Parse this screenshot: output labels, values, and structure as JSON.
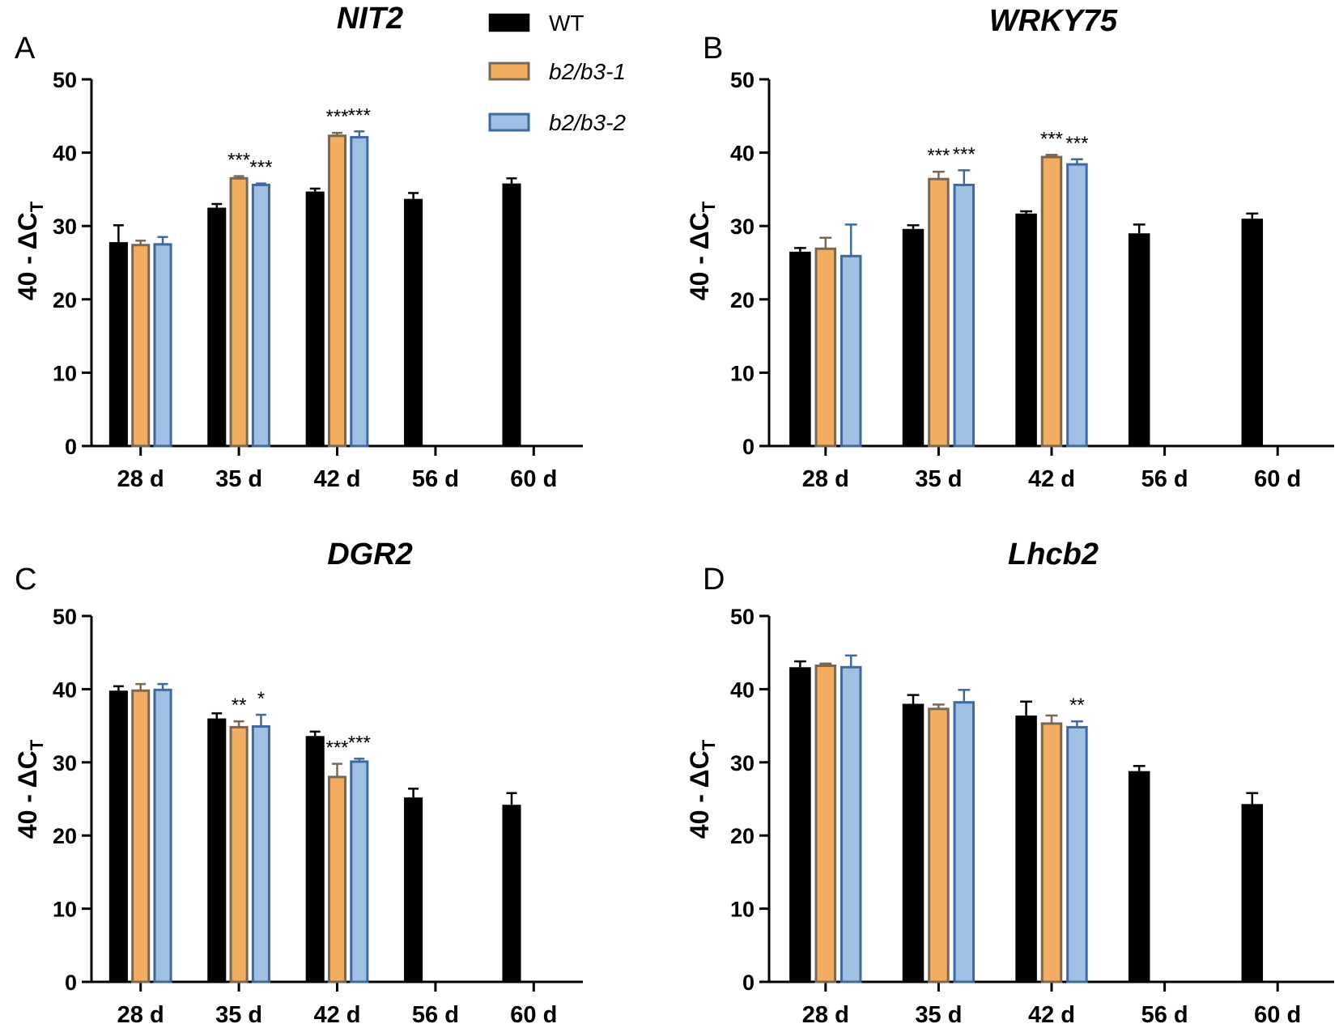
{
  "colors": {
    "WT": {
      "fill": "#000000",
      "edge": "#000000",
      "err": "#000000"
    },
    "b2b3_1": {
      "fill": "#f3ad62",
      "edge": "#7a6750",
      "err": "#7a6750"
    },
    "b2b3_2": {
      "fill": "#9fbfe3",
      "edge": "#3f6aa1",
      "err": "#3f6aa1"
    }
  },
  "legend": {
    "wt": "WT",
    "b2b3_1": "b2/b3-1",
    "b2b3_2": "b2/b3-2"
  },
  "chart_data": [
    {
      "panel": "A",
      "type": "bar",
      "title": "NIT2",
      "ylabel": "40 - ΔC",
      "ylabel_sub": "T",
      "ylim": [
        0,
        50
      ],
      "yticks": [
        0,
        10,
        20,
        30,
        40,
        50
      ],
      "categories": [
        "28 d",
        "35 d",
        "42 d",
        "56 d",
        "60 d"
      ],
      "series": [
        {
          "name": "WT",
          "values": [
            27.8,
            32.5,
            34.7,
            33.7,
            35.8
          ],
          "errors": [
            2.3,
            0.5,
            0.4,
            0.8,
            0.7
          ]
        },
        {
          "name": "b2/b3-1",
          "values": [
            27.4,
            36.5,
            42.3,
            null,
            null
          ],
          "errors": [
            0.6,
            0.3,
            0.4,
            null,
            null
          ]
        },
        {
          "name": "b2/b3-2",
          "values": [
            27.5,
            35.6,
            42.1,
            null,
            null
          ],
          "errors": [
            1.0,
            0.2,
            0.8,
            null,
            null
          ]
        }
      ],
      "significance": [
        {
          "category": 1,
          "series": 1,
          "label": "***"
        },
        {
          "category": 1,
          "series": 2,
          "label": "***"
        },
        {
          "category": 2,
          "series": 1,
          "label": "***"
        },
        {
          "category": 2,
          "series": 2,
          "label": "***"
        }
      ]
    },
    {
      "panel": "B",
      "type": "bar",
      "title": "WRKY75",
      "ylabel": "40 - ΔC",
      "ylabel_sub": "T",
      "ylim": [
        0,
        50
      ],
      "yticks": [
        0,
        10,
        20,
        30,
        40,
        50
      ],
      "categories": [
        "28 d",
        "35 d",
        "42 d",
        "56 d",
        "60 d"
      ],
      "series": [
        {
          "name": "WT",
          "values": [
            26.5,
            29.6,
            31.7,
            29.0,
            31.0
          ],
          "errors": [
            0.5,
            0.5,
            0.3,
            1.2,
            0.7
          ]
        },
        {
          "name": "b2/b3-1",
          "values": [
            26.9,
            36.4,
            39.4,
            null,
            null
          ],
          "errors": [
            1.5,
            1.0,
            0.3,
            null,
            null
          ]
        },
        {
          "name": "b2/b3-2",
          "values": [
            25.9,
            35.6,
            38.4,
            null,
            null
          ],
          "errors": [
            4.3,
            2.0,
            0.7,
            null,
            null
          ]
        }
      ],
      "significance": [
        {
          "category": 1,
          "series": 1,
          "label": "***"
        },
        {
          "category": 1,
          "series": 2,
          "label": "***"
        },
        {
          "category": 2,
          "series": 1,
          "label": "***"
        },
        {
          "category": 2,
          "series": 2,
          "label": "***"
        }
      ]
    },
    {
      "panel": "C",
      "type": "bar",
      "title": "DGR2",
      "ylabel": "40 - ΔC",
      "ylabel_sub": "T",
      "ylim": [
        0,
        50
      ],
      "yticks": [
        0,
        10,
        20,
        30,
        40,
        50
      ],
      "categories": [
        "28 d",
        "35 d",
        "42 d",
        "56 d",
        "60 d"
      ],
      "series": [
        {
          "name": "WT",
          "values": [
            39.8,
            36.0,
            33.6,
            25.2,
            24.2
          ],
          "errors": [
            0.6,
            0.7,
            0.6,
            1.2,
            1.6
          ]
        },
        {
          "name": "b2/b3-1",
          "values": [
            39.8,
            34.8,
            28.0,
            null,
            null
          ],
          "errors": [
            0.9,
            0.8,
            1.8,
            null,
            null
          ]
        },
        {
          "name": "b2/b3-2",
          "values": [
            39.9,
            34.9,
            30.1,
            null,
            null
          ],
          "errors": [
            0.8,
            1.6,
            0.4,
            null,
            null
          ]
        }
      ],
      "significance": [
        {
          "category": 1,
          "series": 1,
          "label": "**"
        },
        {
          "category": 1,
          "series": 2,
          "label": "*"
        },
        {
          "category": 2,
          "series": 1,
          "label": "***"
        },
        {
          "category": 2,
          "series": 2,
          "label": "***"
        }
      ]
    },
    {
      "panel": "D",
      "type": "bar",
      "title": "Lhcb2",
      "ylabel": "40 - ΔC",
      "ylabel_sub": "T",
      "ylim": [
        0,
        50
      ],
      "yticks": [
        0,
        10,
        20,
        30,
        40,
        50
      ],
      "categories": [
        "28 d",
        "35 d",
        "42 d",
        "56 d",
        "60 d"
      ],
      "series": [
        {
          "name": "WT",
          "values": [
            43.0,
            38.0,
            36.4,
            28.8,
            24.3
          ],
          "errors": [
            0.8,
            1.2,
            1.9,
            0.7,
            1.5
          ]
        },
        {
          "name": "b2/b3-1",
          "values": [
            43.2,
            37.3,
            35.3,
            null,
            null
          ],
          "errors": [
            0.3,
            0.6,
            1.1,
            null,
            null
          ]
        },
        {
          "name": "b2/b3-2",
          "values": [
            43.0,
            38.2,
            34.8,
            null,
            null
          ],
          "errors": [
            1.6,
            1.7,
            0.8,
            null,
            null
          ]
        }
      ],
      "significance": [
        {
          "category": 2,
          "series": 2,
          "label": "**"
        }
      ]
    }
  ]
}
